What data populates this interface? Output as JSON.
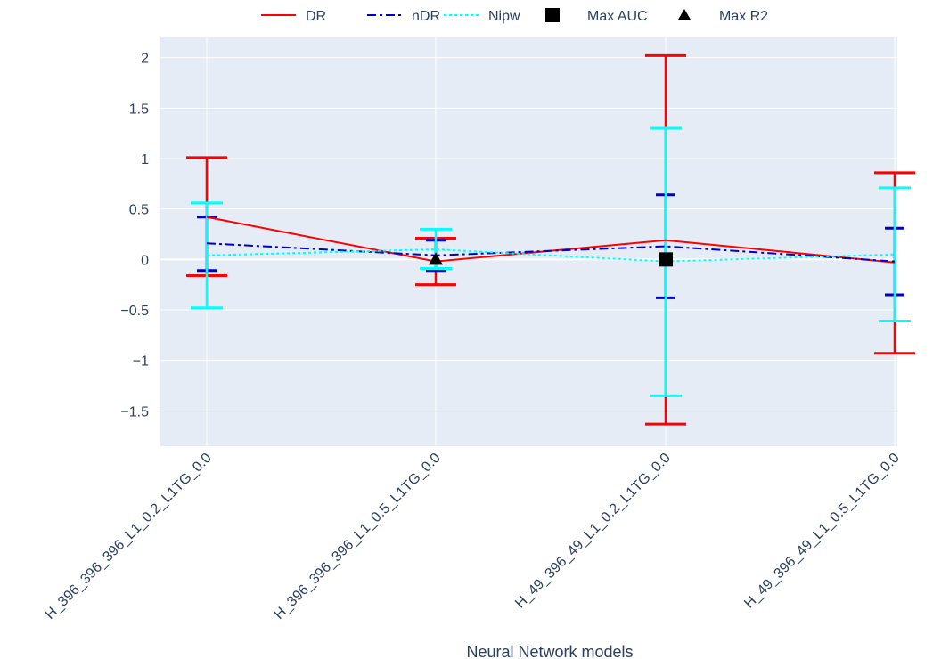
{
  "chart_data": {
    "type": "line",
    "title": "",
    "xlabel": "Neural Network models",
    "ylabel": "",
    "categories": [
      "H_396_396_396_L1_0.2_L1TG_0.0",
      "H_396_396_396_L1_0.5_L1TG_0.0",
      "H_49_396_49_L1_0.2_L1TG_0.0",
      "H_49_396_49_L1_0.5_L1TG_0.0"
    ],
    "ylim": [
      -1.85,
      2.2
    ],
    "yticks": [
      2,
      1.5,
      1,
      0.5,
      0,
      -0.5,
      -1,
      -1.5
    ],
    "ytick_labels": [
      "2",
      "1.5",
      "1",
      "0.5",
      "0",
      "−0.5",
      "−1",
      "−1.5"
    ],
    "grid": true,
    "legend_position": "top",
    "series": [
      {
        "name": "DR",
        "color": "#ff0000",
        "dash": "solid",
        "values": [
          0.42,
          -0.02,
          0.19,
          -0.03
        ],
        "err_low": [
          -0.16,
          -0.25,
          -1.63,
          -0.93
        ],
        "err_high": [
          1.01,
          0.21,
          2.02,
          0.86
        ]
      },
      {
        "name": "nDR",
        "color": "#0000cd",
        "dash": "dashdot",
        "values": [
          0.16,
          0.04,
          0.13,
          -0.02
        ],
        "err_low": [
          -0.11,
          -0.11,
          -0.38,
          -0.35
        ],
        "err_high": [
          0.42,
          0.19,
          0.64,
          0.31
        ]
      },
      {
        "name": "Nipw",
        "color": "#00ffff",
        "dash": "dot",
        "values": [
          0.04,
          0.1,
          -0.02,
          0.05
        ],
        "err_low": [
          -0.48,
          -0.09,
          -1.35,
          -0.61
        ],
        "err_high": [
          0.56,
          0.3,
          1.3,
          0.71
        ]
      }
    ],
    "markers": [
      {
        "name": "Max AUC",
        "symbol": "square",
        "category_index": 2,
        "value": 0.0
      },
      {
        "name": "Max R2",
        "symbol": "triangle",
        "category_index": 1,
        "value": 0.0
      }
    ],
    "colors": {
      "plot_bg": "#e5ecf6",
      "grid": "#ffffff",
      "text": "#2a3f5f",
      "marker": "#000000"
    }
  }
}
